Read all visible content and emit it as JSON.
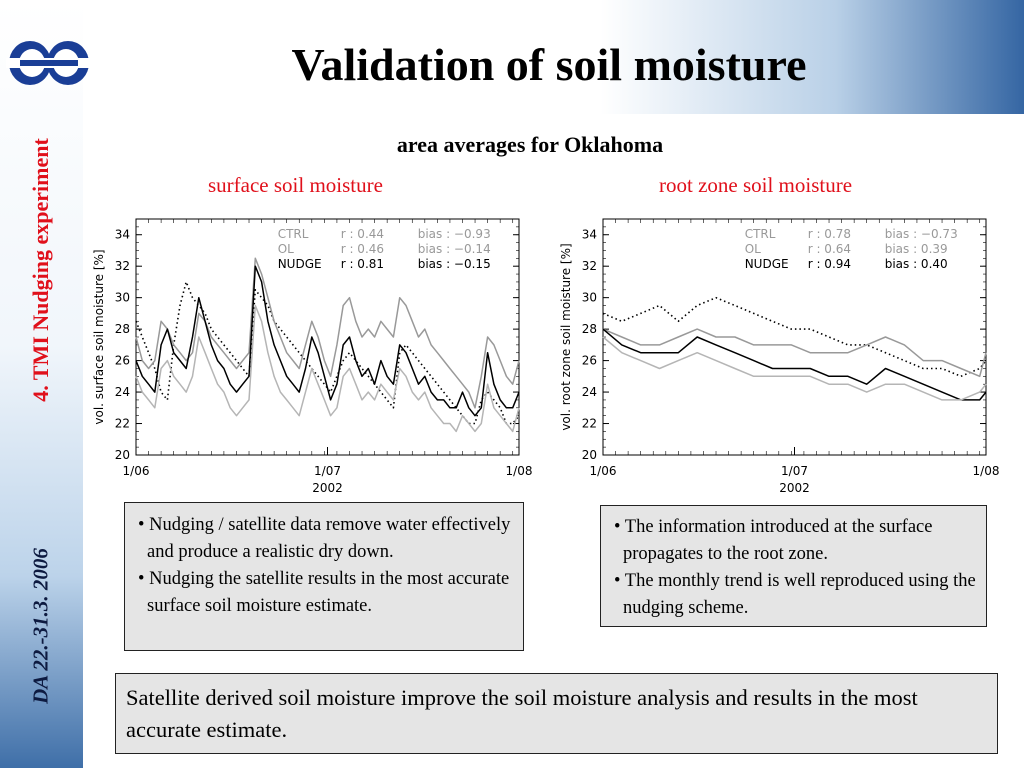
{
  "header": {
    "title": "Validation of soil moisture",
    "subtitle": "area averages for Oklahoma"
  },
  "sidebar": {
    "section_label": "4. TMI Nudging experiment",
    "date_label": "DA 22.-31.3. 2006",
    "logo_icon": "ecmwf-logo-icon"
  },
  "colors": {
    "accent_red": "#e0101b",
    "band_blue": "#3566a3",
    "box_fill": "#e5e5e5",
    "ctrl_line": "#000000",
    "ol_line": "#999999",
    "nudge_line": "#000000"
  },
  "chart_data": [
    {
      "type": "line",
      "title": "surface soil moisture",
      "xlabel": "2002",
      "ylabel": "vol. surface soil moisture [%]",
      "x_ticks": [
        "1/06",
        "1/07",
        "1/08"
      ],
      "xlim": [
        0,
        61
      ],
      "ylim": [
        20,
        35
      ],
      "y_ticks": [
        20,
        22,
        24,
        26,
        28,
        30,
        32,
        34
      ],
      "grid": false,
      "legend_position": "top-right",
      "stats": [
        {
          "name": "CTRL",
          "r": "r : 0.44",
          "bias": "bias : −0.93",
          "color": "#999999"
        },
        {
          "name": "OL",
          "r": "r : 0.46",
          "bias": "bias : −0.14",
          "color": "#999999"
        },
        {
          "name": "NUDGE",
          "r": "r : 0.81",
          "bias": "bias : −0.15",
          "color": "#000000"
        }
      ],
      "x": [
        0,
        1,
        2,
        3,
        4,
        5,
        6,
        7,
        8,
        9,
        10,
        11,
        12,
        13,
        14,
        15,
        16,
        17,
        18,
        19,
        20,
        21,
        22,
        23,
        24,
        25,
        26,
        27,
        28,
        29,
        30,
        31,
        32,
        33,
        34,
        35,
        36,
        37,
        38,
        39,
        40,
        41,
        42,
        43,
        44,
        45,
        46,
        47,
        48,
        49,
        50,
        51,
        52,
        53,
        54,
        55,
        56,
        57,
        58,
        59,
        60,
        61
      ],
      "series": [
        {
          "name": "CTRL",
          "style": "dotted",
          "color": "#000000",
          "values": [
            28.5,
            27.5,
            26.5,
            25.5,
            24.0,
            23.5,
            27.0,
            29.5,
            31.0,
            30.0,
            29.5,
            29.0,
            28.0,
            27.5,
            27.0,
            26.5,
            26.0,
            25.5,
            25.0,
            30.5,
            30.0,
            29.5,
            28.5,
            28.0,
            27.5,
            27.0,
            26.5,
            26.0,
            25.5,
            25.0,
            24.5,
            24.0,
            25.0,
            26.0,
            26.5,
            26.0,
            25.5,
            25.0,
            24.5,
            24.0,
            23.5,
            23.0,
            26.5,
            27.0,
            26.5,
            26.0,
            25.5,
            25.0,
            24.5,
            24.0,
            23.5,
            23.0,
            22.5,
            22.0,
            22.0,
            23.5,
            24.0,
            23.5,
            23.0,
            22.0,
            22.0,
            22.5
          ]
        },
        {
          "name": "OL",
          "style": "solid",
          "color": "#999999",
          "values": [
            27.5,
            26.0,
            25.5,
            26.0,
            28.5,
            28.0,
            27.0,
            26.5,
            26.0,
            26.5,
            29.0,
            28.5,
            27.5,
            27.0,
            26.5,
            26.0,
            25.5,
            26.0,
            26.5,
            32.5,
            31.5,
            30.0,
            28.5,
            27.5,
            26.5,
            26.0,
            25.5,
            27.0,
            28.5,
            27.5,
            26.0,
            25.0,
            27.0,
            29.5,
            30.0,
            28.5,
            27.5,
            28.0,
            27.5,
            28.5,
            28.0,
            27.5,
            30.0,
            29.5,
            28.5,
            27.5,
            28.0,
            27.0,
            26.5,
            26.0,
            25.5,
            25.0,
            24.5,
            24.0,
            23.0,
            25.0,
            27.5,
            27.0,
            26.0,
            25.0,
            24.5,
            26.0
          ]
        },
        {
          "name": "NUDGE",
          "style": "solid",
          "color": "#000000",
          "values": [
            26.0,
            25.0,
            24.5,
            24.0,
            27.0,
            28.0,
            26.5,
            26.0,
            25.5,
            27.5,
            30.0,
            28.5,
            27.0,
            26.0,
            25.5,
            24.5,
            24.0,
            24.5,
            25.0,
            32.0,
            31.0,
            28.5,
            27.0,
            26.0,
            25.0,
            24.5,
            24.0,
            25.5,
            27.5,
            26.5,
            25.0,
            23.5,
            24.5,
            27.0,
            27.5,
            26.0,
            25.0,
            25.5,
            24.5,
            26.0,
            25.0,
            24.5,
            27.0,
            26.5,
            25.5,
            24.5,
            25.0,
            24.0,
            23.5,
            23.5,
            23.0,
            23.0,
            24.0,
            23.0,
            22.5,
            23.0,
            26.5,
            24.5,
            23.5,
            23.0,
            23.0,
            24.0
          ]
        },
        {
          "name": "",
          "style": "solid",
          "color": "#b5b5b5",
          "values": [
            25.0,
            24.0,
            23.5,
            23.0,
            25.5,
            26.0,
            25.0,
            24.5,
            24.0,
            25.0,
            27.5,
            26.5,
            25.5,
            24.5,
            24.0,
            23.0,
            22.5,
            23.0,
            23.5,
            29.5,
            28.5,
            26.5,
            25.0,
            24.0,
            23.5,
            23.0,
            22.5,
            24.0,
            25.5,
            24.5,
            23.5,
            22.5,
            23.0,
            25.0,
            25.5,
            24.5,
            23.5,
            24.0,
            23.5,
            24.5,
            24.0,
            23.5,
            25.5,
            25.0,
            24.0,
            23.5,
            24.0,
            23.0,
            22.5,
            22.0,
            22.0,
            21.5,
            22.5,
            22.0,
            21.5,
            22.0,
            24.5,
            23.0,
            22.5,
            22.0,
            21.5,
            23.0
          ]
        }
      ]
    },
    {
      "type": "line",
      "title": "root zone soil moisture",
      "xlabel": "2002",
      "ylabel": "vol. root zone soil moisture [%]",
      "x_ticks": [
        "1/06",
        "1/07",
        "1/08"
      ],
      "xlim": [
        0,
        61
      ],
      "ylim": [
        20,
        35
      ],
      "y_ticks": [
        20,
        22,
        24,
        26,
        28,
        30,
        32,
        34
      ],
      "grid": false,
      "legend_position": "top-right",
      "stats": [
        {
          "name": "CTRL",
          "r": "r : 0.78",
          "bias": "bias : −0.73",
          "color": "#999999"
        },
        {
          "name": "OL",
          "r": "r : 0.64",
          "bias": "bias :   0.39",
          "color": "#999999"
        },
        {
          "name": "NUDGE",
          "r": "r : 0.94",
          "bias": "bias :   0.40",
          "color": "#000000"
        }
      ],
      "x": [
        0,
        3,
        6,
        9,
        12,
        15,
        18,
        21,
        24,
        27,
        30,
        33,
        36,
        39,
        42,
        45,
        48,
        51,
        54,
        57,
        60,
        61
      ],
      "series": [
        {
          "name": "CTRL",
          "style": "dotted",
          "color": "#000000",
          "values": [
            29.0,
            28.5,
            29.0,
            29.5,
            28.5,
            29.5,
            30.0,
            29.5,
            29.0,
            28.5,
            28.0,
            28.0,
            27.5,
            27.0,
            27.0,
            26.5,
            26.0,
            25.5,
            25.5,
            25.0,
            25.5,
            26.0
          ]
        },
        {
          "name": "OL",
          "style": "solid",
          "color": "#999999",
          "values": [
            28.0,
            27.5,
            27.0,
            27.0,
            27.5,
            28.0,
            27.5,
            27.5,
            27.0,
            27.0,
            27.0,
            26.5,
            26.5,
            26.5,
            27.0,
            27.5,
            27.0,
            26.0,
            26.0,
            25.5,
            25.0,
            26.5
          ]
        },
        {
          "name": "NUDGE",
          "style": "solid",
          "color": "#000000",
          "values": [
            28.0,
            27.0,
            26.5,
            26.5,
            26.5,
            27.5,
            27.0,
            26.5,
            26.0,
            25.5,
            25.5,
            25.5,
            25.0,
            25.0,
            24.5,
            25.5,
            25.0,
            24.5,
            24.0,
            23.5,
            23.5,
            24.0
          ]
        },
        {
          "name": "",
          "style": "solid",
          "color": "#b5b5b5",
          "values": [
            27.5,
            26.5,
            26.0,
            25.5,
            26.0,
            26.5,
            26.0,
            25.5,
            25.0,
            25.0,
            25.0,
            25.0,
            24.5,
            24.5,
            24.0,
            24.5,
            24.5,
            24.0,
            23.5,
            23.5,
            24.0,
            24.5
          ]
        }
      ]
    }
  ],
  "notes": {
    "left": [
      "Nudging / satellite data remove water effectively and produce a realistic dry down.",
      "Nudging the satellite results in the most accurate surface soil moisture estimate."
    ],
    "right": [
      "The information introduced at the surface propagates to the root zone.",
      "The monthly trend is well reproduced using the nudging scheme."
    ]
  },
  "conclusion": "Satellite derived soil moisture improve the soil moisture analysis and results in the most accurate estimate."
}
